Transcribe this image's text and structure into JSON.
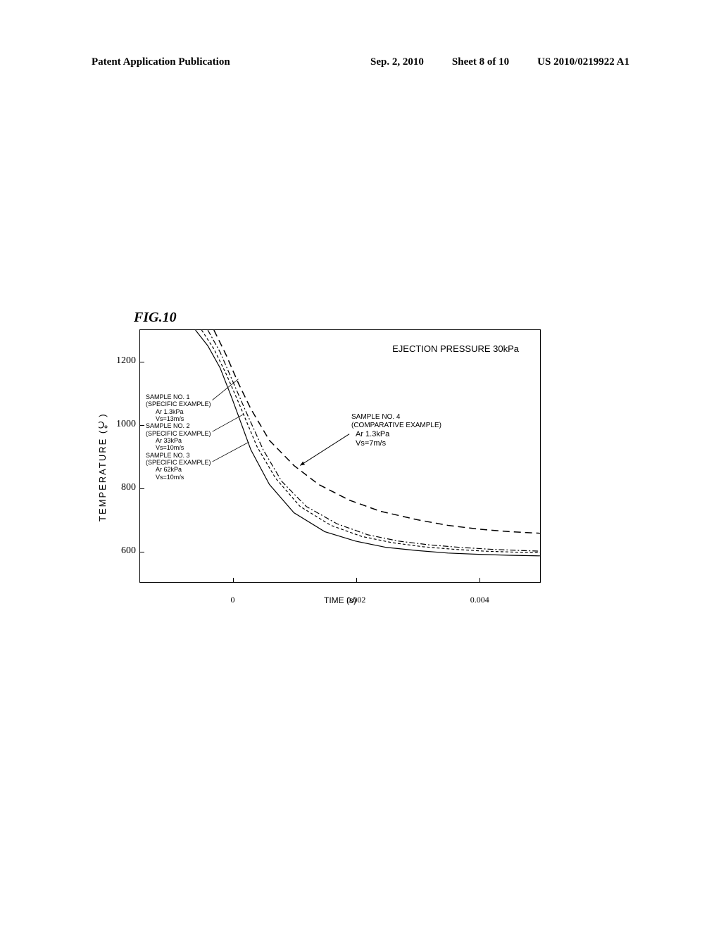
{
  "header": {
    "left": "Patent Application Publication",
    "date": "Sep. 2, 2010",
    "sheet": "Sheet 8 of 10",
    "pubno": "US 2010/0219922 A1"
  },
  "figure": {
    "title": "FIG.10",
    "chart": {
      "type": "line",
      "title_annotation": "EJECTION PRESSURE 30kPa",
      "ylabel": "TEMPERATURE  (℃)",
      "xlabel": "TIME (s)",
      "ylim": [
        500,
        1300
      ],
      "yticks": [
        1200,
        1000,
        800,
        600
      ],
      "xlim": [
        -0.0015,
        0.005
      ],
      "xticks": [
        0,
        0.002,
        0.004
      ],
      "xtick_labels": [
        "0",
        "0.002",
        "0.004"
      ],
      "background_color": "#ffffff",
      "border_color": "#000000",
      "label_fontsize": 13,
      "tick_fontsize": 12,
      "annotation_fontsize": 13,
      "legend_fontsize": 9,
      "legend_left": {
        "sample1": {
          "line1": "SAMPLE NO. 1",
          "line2": "(SPECIFIC EXAMPLE)",
          "line3": "Ar 1.3kPa",
          "line4": "Vs=13m/s"
        },
        "sample2": {
          "line1": "SAMPLE NO. 2",
          "line2": "(SPECIFIC EXAMPLE)",
          "line3": "Ar 33kPa",
          "line4": "Vs=10m/s"
        },
        "sample3": {
          "line1": "SAMPLE NO. 3",
          "line2": "(SPECIFIC EXAMPLE)",
          "line3": "Ar 62kPa",
          "line4": "Vs=10m/s"
        }
      },
      "legend_right": {
        "sample4": {
          "line1": "SAMPLE NO. 4",
          "line2": "(COMPARATIVE EXAMPLE)",
          "line3": "Ar 1.3kPa",
          "line4": "Vs=7m/s"
        }
      },
      "series": [
        {
          "name": "sample1",
          "color": "#000000",
          "dash": "none",
          "width": 1.2,
          "points": [
            [
              -0.0006,
              1300
            ],
            [
              -0.0004,
              1250
            ],
            [
              -0.0002,
              1180
            ],
            [
              0,
              1080
            ],
            [
              0.0003,
              920
            ],
            [
              0.0006,
              810
            ],
            [
              0.001,
              720
            ],
            [
              0.0015,
              660
            ],
            [
              0.002,
              630
            ],
            [
              0.0025,
              610
            ],
            [
              0.003,
              600
            ],
            [
              0.0035,
              592
            ],
            [
              0.004,
              588
            ],
            [
              0.0045,
              585
            ],
            [
              0.005,
              583
            ]
          ]
        },
        {
          "name": "sample2",
          "color": "#000000",
          "dash": "4,3",
          "width": 1.2,
          "points": [
            [
              -0.0005,
              1300
            ],
            [
              -0.0003,
              1240
            ],
            [
              -0.0001,
              1160
            ],
            [
              0.0001,
              1070
            ],
            [
              0.0004,
              930
            ],
            [
              0.0007,
              830
            ],
            [
              0.0011,
              740
            ],
            [
              0.0016,
              680
            ],
            [
              0.0021,
              645
            ],
            [
              0.0026,
              625
            ],
            [
              0.0031,
              612
            ],
            [
              0.0036,
              604
            ],
            [
              0.0041,
              598
            ],
            [
              0.0046,
              595
            ],
            [
              0.005,
              593
            ]
          ]
        },
        {
          "name": "sample3",
          "color": "#000000",
          "dash": "8,3,2,3",
          "width": 1.2,
          "points": [
            [
              -0.0004,
              1300
            ],
            [
              -0.0002,
              1230
            ],
            [
              0,
              1140
            ],
            [
              0.0002,
              1050
            ],
            [
              0.0005,
              920
            ],
            [
              0.0008,
              820
            ],
            [
              0.0012,
              740
            ],
            [
              0.0017,
              685
            ],
            [
              0.0022,
              650
            ],
            [
              0.0027,
              630
            ],
            [
              0.0032,
              618
            ],
            [
              0.0037,
              610
            ],
            [
              0.0042,
              604
            ],
            [
              0.0047,
              600
            ],
            [
              0.005,
              598
            ]
          ]
        },
        {
          "name": "sample4",
          "color": "#000000",
          "dash": "10,6",
          "width": 1.5,
          "points": [
            [
              -0.0003,
              1300
            ],
            [
              -0.0001,
              1220
            ],
            [
              0.0001,
              1130
            ],
            [
              0.0003,
              1050
            ],
            [
              0.0006,
              950
            ],
            [
              0.001,
              870
            ],
            [
              0.0014,
              810
            ],
            [
              0.0019,
              760
            ],
            [
              0.0024,
              725
            ],
            [
              0.003,
              698
            ],
            [
              0.0035,
              680
            ],
            [
              0.004,
              668
            ],
            [
              0.0045,
              660
            ],
            [
              0.005,
              655
            ]
          ]
        }
      ],
      "arrow_sample4": {
        "from": [
          0.0019,
          970
        ],
        "to": [
          0.0011,
          870
        ]
      }
    }
  }
}
